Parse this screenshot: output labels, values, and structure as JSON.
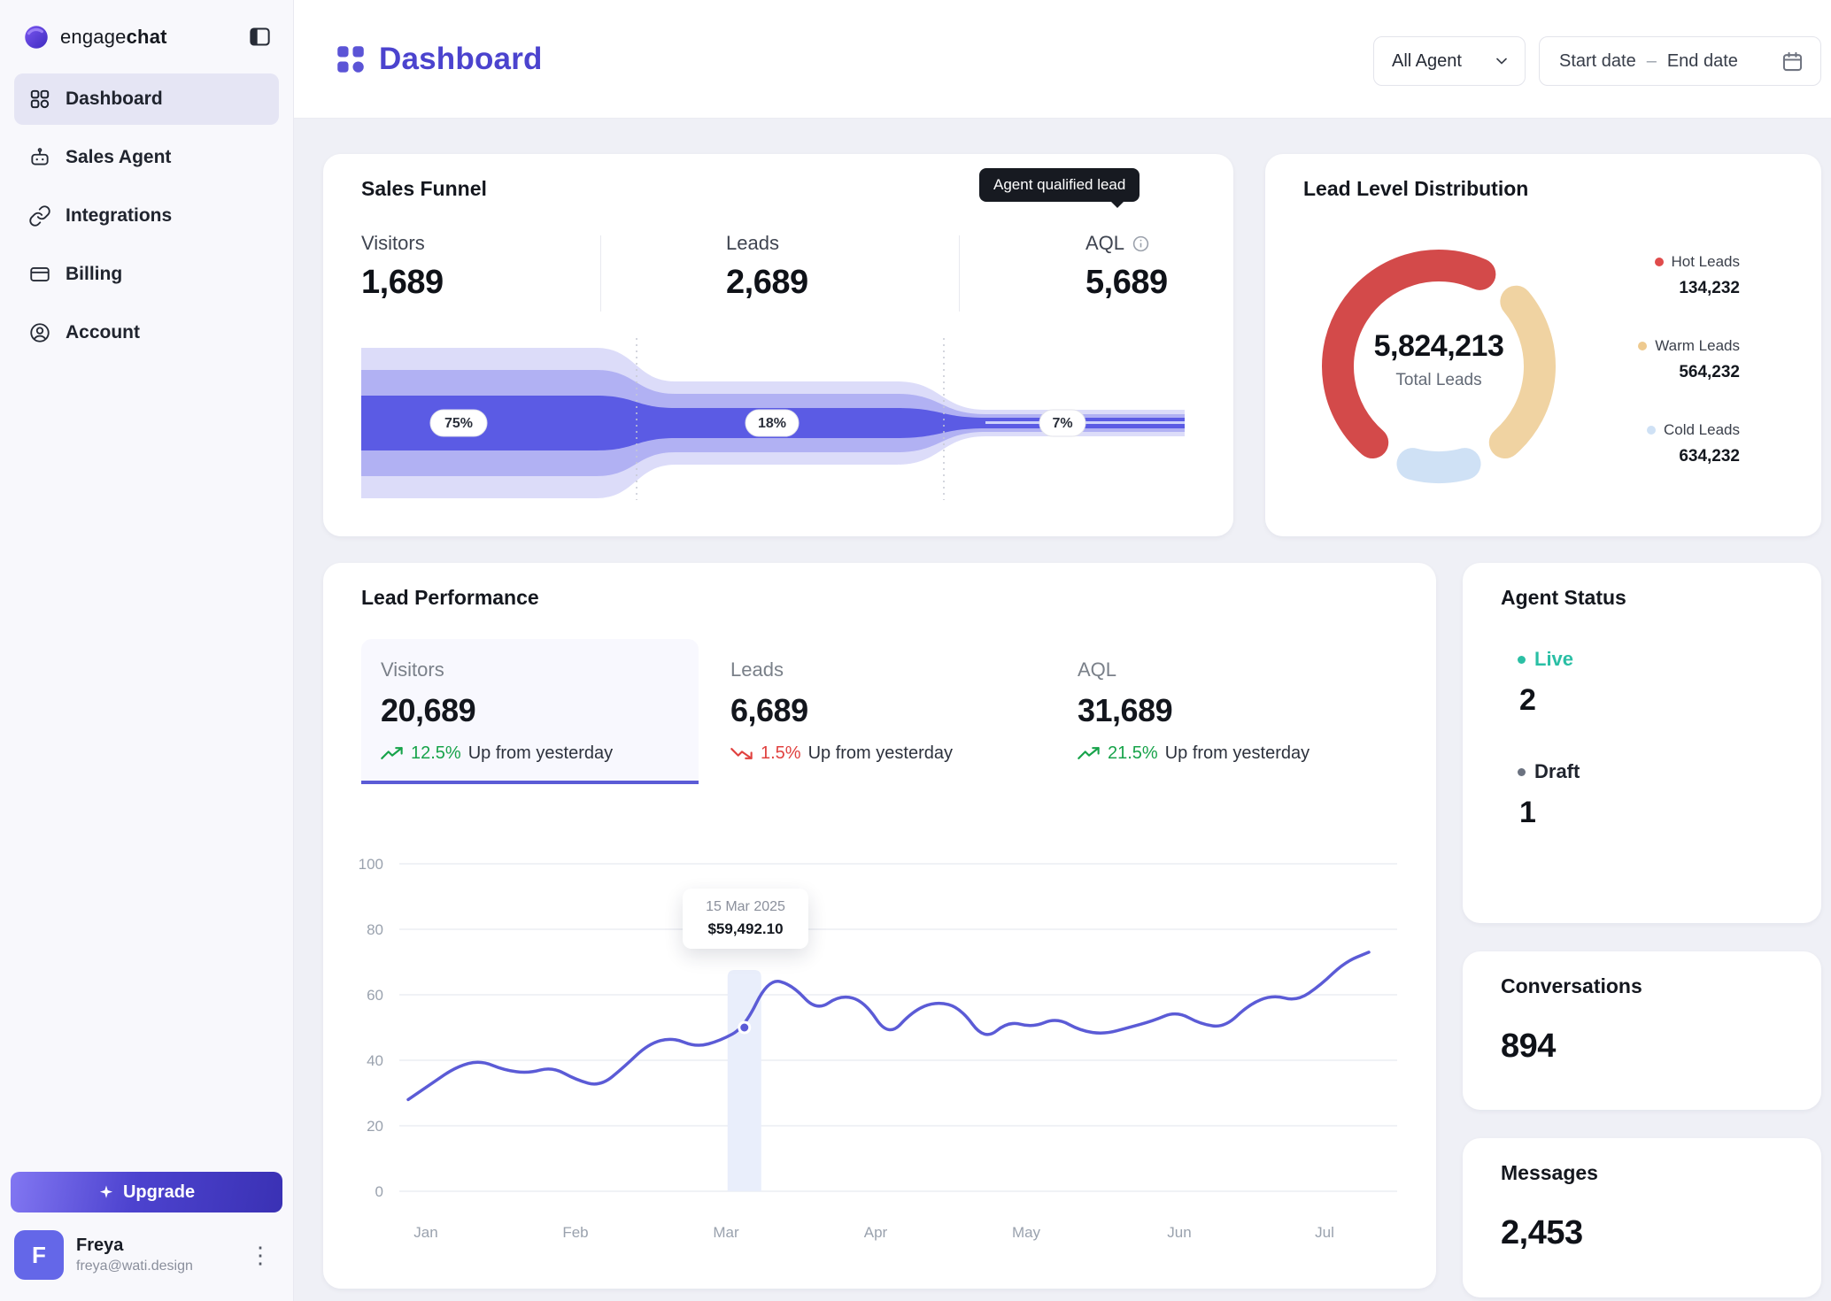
{
  "brand": {
    "name_regular": "engage",
    "name_bold": "chat"
  },
  "sidebar": {
    "items": [
      {
        "label": "Dashboard",
        "icon": "grid-icon",
        "active": true
      },
      {
        "label": "Sales Agent",
        "icon": "bot-icon",
        "active": false
      },
      {
        "label": "Integrations",
        "icon": "link-icon",
        "active": false
      },
      {
        "label": "Billing",
        "icon": "card-icon",
        "active": false
      },
      {
        "label": "Account",
        "icon": "user-icon",
        "active": false
      }
    ],
    "upgrade_label": "Upgrade",
    "user": {
      "name": "Freya",
      "email": "freya@wati.design",
      "avatar_initial": "F"
    }
  },
  "header": {
    "title": "Dashboard",
    "agent_filter_value": "All Agent",
    "date_start_placeholder": "Start date",
    "date_separator": "–",
    "date_end_placeholder": "End date"
  },
  "sales_funnel": {
    "title": "Sales Funnel",
    "tooltip_label": "Agent qualified lead",
    "stats": [
      {
        "label": "Visitors",
        "value": "1,689"
      },
      {
        "label": "Leads",
        "value": "2,689"
      },
      {
        "label": "AQL",
        "value": "5,689"
      }
    ],
    "stages": [
      {
        "pct": "75%"
      },
      {
        "pct": "18%"
      },
      {
        "pct": "7%"
      }
    ],
    "layer_colors": [
      "#dcdcf9",
      "#b1b1f3",
      "#5b5be4"
    ]
  },
  "lead_distribution": {
    "title": "Lead Level Distribution",
    "total_value": "5,824,213",
    "total_label": "Total Leads",
    "legend": [
      {
        "label": "Hot Leads",
        "value": "134,232",
        "color": "#e04b4b"
      },
      {
        "label": "Warm Leads",
        "value": "564,232",
        "color": "#eeca8f"
      },
      {
        "label": "Cold Leads",
        "value": "634,232",
        "color": "#cfe1f5"
      }
    ],
    "chart": {
      "type": "donut",
      "segments": [
        {
          "name": "Hot Leads",
          "color": "#d34a4a",
          "arc": [
            221,
            384
          ]
        },
        {
          "name": "Warm Leads",
          "color": "#f0d3a2",
          "arc": [
            50,
            139
          ]
        },
        {
          "name": "Cold Leads",
          "color": "#cfe1f5",
          "arc": [
            165,
            195
          ]
        }
      ]
    }
  },
  "lead_performance": {
    "title": "Lead Performance",
    "stats": [
      {
        "label": "Visitors",
        "value": "20,689",
        "change": "12.5%",
        "change_color": "#17a34a",
        "direction": "up",
        "note": "Up from yesterday",
        "selected": true
      },
      {
        "label": "Leads",
        "value": "6,689",
        "change": "1.5%",
        "change_color": "#e0413f",
        "direction": "down",
        "note": "Up from yesterday",
        "selected": false
      },
      {
        "label": "AQL",
        "value": "31,689",
        "change": "21.5%",
        "change_color": "#17a34a",
        "direction": "up",
        "note": "Up from yesterday",
        "selected": false
      }
    ],
    "chart": {
      "type": "line",
      "x_labels": [
        "Jan",
        "Feb",
        "Mar",
        "Apr",
        "May",
        "Jun",
        "Jul"
      ],
      "y_ticks": [
        0,
        20,
        40,
        60,
        80,
        100
      ],
      "ylim": [
        0,
        100
      ],
      "values": [
        28,
        33,
        38,
        40,
        37,
        36,
        38,
        34,
        32,
        38,
        45,
        47,
        44,
        46,
        50,
        65,
        63,
        55,
        60,
        58,
        47,
        55,
        58,
        56,
        46,
        52,
        50,
        53,
        49,
        48,
        50,
        52,
        55,
        51,
        50,
        57,
        60,
        58,
        63,
        70,
        73
      ],
      "highlight_index": 14,
      "tooltip": {
        "date": "15 Mar 2025",
        "value": "$59,492.10"
      },
      "line_color": "#5b5bd6"
    }
  },
  "agent_status": {
    "title": "Agent Status",
    "items": [
      {
        "label": "Live",
        "value": "2",
        "color": "#2bbfa4",
        "label_color": "#2abfa5"
      },
      {
        "label": "Draft",
        "value": "1",
        "color": "#6b7280",
        "label_color": "#20242e"
      }
    ]
  },
  "conversations": {
    "title": "Conversations",
    "value": "894"
  },
  "messages": {
    "title": "Messages",
    "value": "2,453"
  }
}
